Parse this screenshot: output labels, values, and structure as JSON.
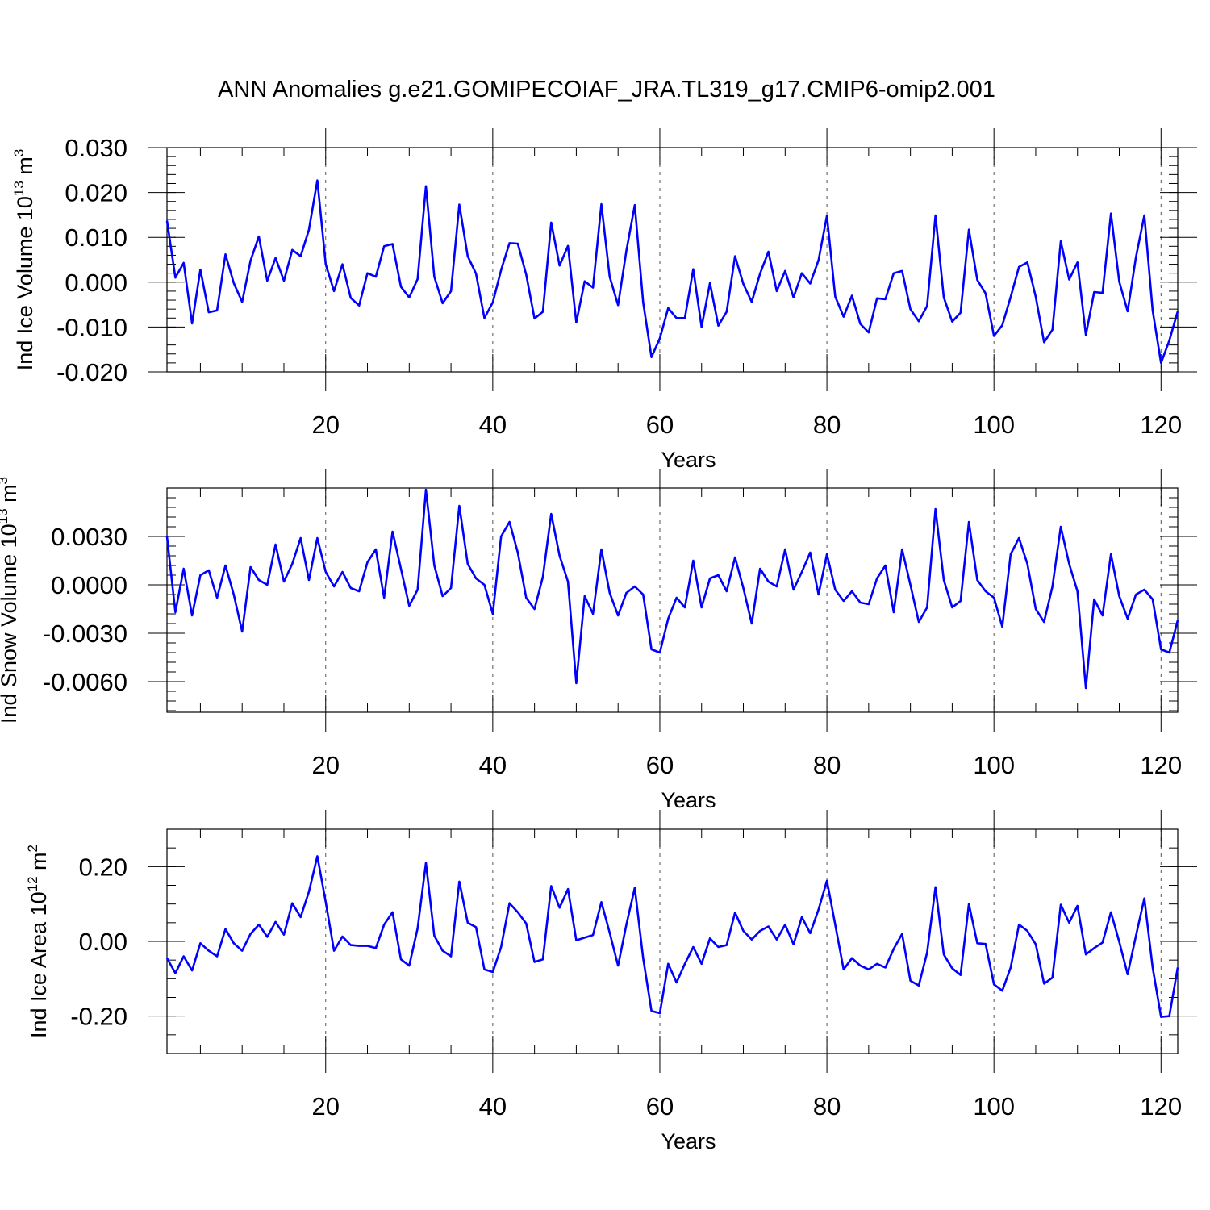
{
  "figure": {
    "title": "ANN Anomalies g.e21.GOMIPECOIAF_JRA.TL319_g17.CMIP6-omip2.001"
  },
  "chart_data": [
    {
      "type": "line",
      "ylabel": {
        "base": "Ind Ice Volume 10",
        "exp": "13",
        "unit": " m",
        "unit_exp": "3"
      },
      "xlabel": "Years",
      "xlim": [
        1,
        122
      ],
      "ylim": [
        -0.02,
        0.03
      ],
      "xticks": [
        20,
        40,
        60,
        80,
        100,
        120
      ],
      "xtick_labels": [
        "20",
        "40",
        "60",
        "80",
        "100",
        "120"
      ],
      "yticks": [
        -0.02,
        -0.01,
        0.0,
        0.01,
        0.02,
        0.03
      ],
      "ytick_labels": [
        "-0.020",
        "-0.010",
        "0.000",
        "0.010",
        "0.020",
        "0.030"
      ],
      "yminor_step": 0.002,
      "grid": "dashed vertical at major x ticks",
      "series": [
        {
          "color": "#0000ff",
          "values": [
            0.0137,
            0.001,
            0.0043,
            -0.0092,
            0.0028,
            -0.0067,
            -0.0063,
            0.0062,
            -0.0002,
            -0.0044,
            0.0048,
            0.0102,
            0.0003,
            0.0054,
            0.0003,
            0.0072,
            0.0058,
            0.0117,
            0.0227,
            0.004,
            -0.002,
            0.004,
            -0.0035,
            -0.0052,
            0.002,
            0.0012,
            0.008,
            0.0085,
            -0.001,
            -0.0034,
            0.0007,
            0.0214,
            0.0012,
            -0.0047,
            -0.002,
            0.0173,
            0.0058,
            0.0019,
            -0.008,
            -0.0045,
            0.0027,
            0.0087,
            0.0086,
            0.0017,
            -0.0081,
            -0.0066,
            0.0133,
            0.0037,
            0.0081,
            -0.009,
            0.0002,
            -0.0012,
            0.0174,
            0.0012,
            -0.0051,
            0.007,
            0.0172,
            -0.0045,
            -0.0167,
            -0.0125,
            -0.0058,
            -0.008,
            -0.008,
            0.0029,
            -0.01,
            -0.0002,
            -0.0097,
            -0.0066,
            0.0058,
            -0.0004,
            -0.0044,
            0.0019,
            0.0068,
            -0.002,
            0.0025,
            -0.0034,
            0.002,
            -0.0003,
            0.0049,
            0.0148,
            -0.0032,
            -0.0077,
            -0.003,
            -0.0093,
            -0.0112,
            -0.0036,
            -0.0038,
            0.002,
            0.0025,
            -0.006,
            -0.0087,
            -0.0053,
            0.0149,
            -0.0034,
            -0.0088,
            -0.0068,
            0.0117,
            0.0005,
            -0.0025,
            -0.012,
            -0.0096,
            -0.0033,
            0.0034,
            0.0044,
            -0.0033,
            -0.0134,
            -0.0106,
            0.0091,
            0.0006,
            0.0044,
            -0.0118,
            -0.0022,
            -0.0024,
            0.0153,
            0.0001,
            -0.0065,
            0.0056,
            0.0149,
            -0.0063,
            -0.018,
            -0.013,
            -0.0065
          ]
        }
      ]
    },
    {
      "type": "line",
      "ylabel": {
        "base": "Ind Snow Volume 10",
        "exp": "13",
        "unit": " m",
        "unit_exp": "3"
      },
      "xlabel": "Years",
      "xlim": [
        1,
        122
      ],
      "ylim": [
        -0.0079,
        0.006
      ],
      "xticks": [
        20,
        40,
        60,
        80,
        100,
        120
      ],
      "xtick_labels": [
        "20",
        "40",
        "60",
        "80",
        "100",
        "120"
      ],
      "yticks": [
        -0.006,
        -0.003,
        0.0,
        0.003
      ],
      "ytick_labels": [
        "-0.0060",
        "-0.0030",
        "0.0000",
        "0.0030"
      ],
      "yminor_step": 0.0006,
      "grid": "dashed vertical at major x ticks",
      "series": [
        {
          "color": "#0000ff",
          "values": [
            0.003,
            -0.0017,
            0.001,
            -0.0019,
            0.0006,
            0.0009,
            -0.0008,
            0.0012,
            -0.0006,
            -0.0029,
            0.0011,
            0.0003,
            0.0,
            0.0025,
            0.0002,
            0.0013,
            0.0029,
            0.0003,
            0.0029,
            0.0008,
            -0.0001,
            0.0008,
            -0.0002,
            -0.0004,
            0.0014,
            0.0022,
            -0.0008,
            0.0033,
            0.001,
            -0.0013,
            -0.0003,
            0.0059,
            0.0012,
            -0.0007,
            -0.0002,
            0.0049,
            0.0013,
            0.0004,
            0.0,
            -0.0018,
            0.003,
            0.0039,
            0.002,
            -0.0008,
            -0.0015,
            0.0005,
            0.0044,
            0.0018,
            0.0002,
            -0.0061,
            -0.0007,
            -0.0018,
            0.0022,
            -0.0005,
            -0.0019,
            -0.0005,
            -0.0001,
            -0.0006,
            -0.004,
            -0.0042,
            -0.0021,
            -0.0008,
            -0.0014,
            0.0015,
            -0.0014,
            0.0004,
            0.0006,
            -0.0004,
            0.0017,
            -0.0002,
            -0.0024,
            0.001,
            0.0002,
            -0.0001,
            0.0022,
            -0.0003,
            0.0008,
            0.002,
            -0.0006,
            0.0019,
            -0.0003,
            -0.001,
            -0.0004,
            -0.0011,
            -0.0012,
            0.0004,
            0.0012,
            -0.0017,
            0.0022,
            0.0,
            -0.0023,
            -0.0014,
            0.0047,
            0.0003,
            -0.0014,
            -0.001,
            0.0039,
            0.0003,
            -0.0004,
            -0.0008,
            -0.0026,
            0.0019,
            0.0029,
            0.0013,
            -0.0015,
            -0.0023,
            -0.0001,
            0.0036,
            0.0013,
            -0.0004,
            -0.0064,
            -0.0009,
            -0.0019,
            0.0019,
            -0.0007,
            -0.0021,
            -0.0006,
            -0.0003,
            -0.0009,
            -0.004,
            -0.0042,
            -0.0022
          ]
        }
      ]
    },
    {
      "type": "line",
      "ylabel": {
        "base": "Ind Ice Area 10",
        "exp": "12",
        "unit": " m",
        "unit_exp": "2"
      },
      "xlabel": "Years",
      "xlim": [
        1,
        122
      ],
      "ylim": [
        -0.3,
        0.3
      ],
      "xticks": [
        20,
        40,
        60,
        80,
        100,
        120
      ],
      "xtick_labels": [
        "20",
        "40",
        "60",
        "80",
        "100",
        "120"
      ],
      "yticks": [
        -0.2,
        0.0,
        0.2
      ],
      "ytick_labels": [
        "-0.20",
        "0.00",
        "0.20"
      ],
      "yminor_step": 0.05,
      "grid": "dashed vertical at major x ticks",
      "series": [
        {
          "color": "#0000ff",
          "values": [
            -0.045,
            -0.085,
            -0.04,
            -0.078,
            -0.005,
            -0.025,
            -0.04,
            0.033,
            -0.005,
            -0.025,
            0.02,
            0.045,
            0.012,
            0.052,
            0.018,
            0.102,
            0.065,
            0.133,
            0.228,
            0.105,
            -0.025,
            0.013,
            -0.01,
            -0.012,
            -0.012,
            -0.018,
            0.045,
            0.078,
            -0.048,
            -0.065,
            0.035,
            0.21,
            0.015,
            -0.025,
            -0.04,
            0.16,
            0.05,
            0.038,
            -0.075,
            -0.082,
            -0.015,
            0.102,
            0.078,
            0.048,
            -0.055,
            -0.048,
            0.148,
            0.09,
            0.14,
            0.003,
            0.01,
            0.017,
            0.105,
            0.023,
            -0.065,
            0.045,
            0.143,
            -0.045,
            -0.186,
            -0.192,
            -0.06,
            -0.11,
            -0.06,
            -0.015,
            -0.06,
            0.008,
            -0.015,
            -0.01,
            0.077,
            0.028,
            0.005,
            0.028,
            0.04,
            0.005,
            0.045,
            -0.008,
            0.065,
            0.022,
            0.085,
            0.162,
            0.045,
            -0.075,
            -0.045,
            -0.065,
            -0.075,
            -0.06,
            -0.07,
            -0.02,
            0.02,
            -0.105,
            -0.118,
            -0.03,
            0.145,
            -0.035,
            -0.072,
            -0.09,
            0.1,
            -0.005,
            -0.007,
            -0.115,
            -0.132,
            -0.07,
            0.045,
            0.028,
            -0.008,
            -0.113,
            -0.097,
            0.098,
            0.05,
            0.095,
            -0.035,
            -0.018,
            -0.003,
            0.078,
            -0.001,
            -0.088,
            0.015,
            0.115,
            -0.07,
            -0.202,
            -0.2,
            -0.07
          ]
        }
      ]
    }
  ]
}
